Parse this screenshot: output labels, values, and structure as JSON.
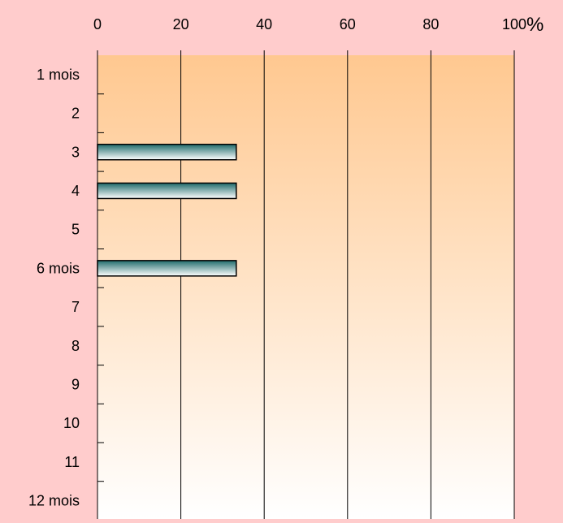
{
  "colors": {
    "background": "#ffcccc",
    "plot_top": "#ffc890",
    "plot_bottom": "#ffffff",
    "bar_dark": "#1f6b6b",
    "bar_light": "#ffffff",
    "bar_border": "#000000",
    "gridline": "#000000"
  },
  "chart_data": {
    "type": "bar",
    "orientation": "horizontal",
    "title": "",
    "xlabel": "",
    "ylabel": "",
    "unit_label": "%",
    "xlim": [
      0,
      100
    ],
    "x_ticks": [
      "0",
      "20",
      "40",
      "60",
      "80",
      "100"
    ],
    "x_tick_values": [
      0,
      20,
      40,
      60,
      80,
      100
    ],
    "categories": [
      "1 mois",
      "2",
      "3",
      "4",
      "5",
      "6 mois",
      "7",
      "8",
      "9",
      "10",
      "11",
      "12 mois"
    ],
    "values": [
      0,
      0,
      33.3,
      33.3,
      0,
      33.3,
      0,
      0,
      0,
      0,
      0,
      0
    ],
    "grid": true,
    "axis_position": "top",
    "legend": "none"
  }
}
